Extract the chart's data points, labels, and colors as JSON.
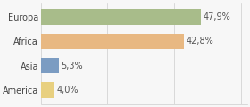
{
  "categories": [
    "Europa",
    "Africa",
    "Asia",
    "America"
  ],
  "values": [
    47.9,
    42.8,
    5.3,
    4.0
  ],
  "labels": [
    "47,9%",
    "42,8%",
    "5,3%",
    "4,0%"
  ],
  "colors": [
    "#a8bc8a",
    "#e8b882",
    "#7b9cc2",
    "#e8d080"
  ],
  "xlim": [
    0,
    62
  ],
  "background_color": "#f7f7f7",
  "bar_height": 0.65,
  "label_fontsize": 7.0,
  "category_fontsize": 7.0
}
